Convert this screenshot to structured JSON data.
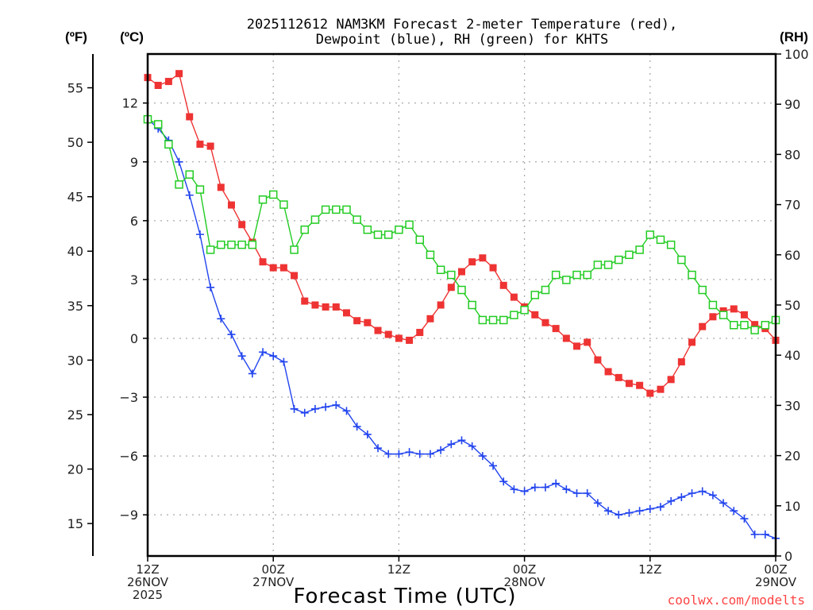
{
  "chart_data": {
    "type": "line",
    "title_lines": [
      "2025112612 NAM3KM Forecast 2-meter Temperature (red),",
      "Dewpoint (blue), RH (green) for KHTS"
    ],
    "xlabel": "Forecast Time (UTC)",
    "credit": "coolwx.com/modelts",
    "x_unit": "hours since 12Z 26NOV 2025",
    "x_range": [
      0,
      60
    ],
    "x_ticks": [
      {
        "hour": 0,
        "lines": [
          "12Z",
          "26NOV",
          "2025"
        ]
      },
      {
        "hour": 12,
        "lines": [
          "00Z",
          "27NOV"
        ]
      },
      {
        "hour": 24,
        "lines": [
          "12Z"
        ]
      },
      {
        "hour": 36,
        "lines": [
          "00Z",
          "28NOV"
        ]
      },
      {
        "hour": 48,
        "lines": [
          "12Z"
        ]
      },
      {
        "hour": 60,
        "lines": [
          "00Z",
          "29NOV"
        ]
      }
    ],
    "axes": {
      "fahrenheit": {
        "label": "(ºF)",
        "ticks": [
          15,
          20,
          25,
          30,
          35,
          40,
          45,
          50,
          55
        ]
      },
      "celsius": {
        "label": "(ºC)",
        "ticks": [
          -9,
          -6,
          -3,
          0,
          3,
          6,
          9,
          12
        ],
        "range": [
          -11.1,
          14.5
        ]
      },
      "rh": {
        "label": "(RH)",
        "ticks": [
          0,
          10,
          20,
          30,
          40,
          50,
          60,
          70,
          80,
          90,
          100
        ],
        "range": [
          0,
          100
        ]
      }
    },
    "grid": true,
    "x": [
      0,
      1,
      2,
      3,
      4,
      5,
      6,
      7,
      8,
      9,
      10,
      11,
      12,
      13,
      14,
      15,
      16,
      17,
      18,
      19,
      20,
      21,
      22,
      23,
      24,
      25,
      26,
      27,
      28,
      29,
      30,
      31,
      32,
      33,
      34,
      35,
      36,
      37,
      38,
      39,
      40,
      41,
      42,
      43,
      44,
      45,
      46,
      47,
      48,
      49,
      50,
      51,
      52,
      53,
      54,
      55,
      56,
      57,
      58,
      59,
      60
    ],
    "series": [
      {
        "name": "Temperature",
        "unit": "°C",
        "axis": "celsius",
        "color": "#ee3333",
        "marker": "filled-square",
        "values": [
          13.3,
          12.9,
          13.1,
          13.5,
          11.3,
          9.9,
          9.8,
          7.7,
          6.8,
          5.8,
          4.9,
          3.9,
          3.6,
          3.6,
          3.2,
          1.9,
          1.7,
          1.6,
          1.6,
          1.3,
          0.9,
          0.8,
          0.4,
          0.2,
          0.0,
          -0.1,
          0.3,
          1.0,
          1.7,
          2.6,
          3.4,
          3.9,
          4.1,
          3.6,
          2.7,
          2.1,
          1.6,
          1.2,
          0.8,
          0.5,
          0.0,
          -0.4,
          -0.2,
          -1.1,
          -1.7,
          -2.0,
          -2.3,
          -2.4,
          -2.8,
          -2.6,
          -2.1,
          -1.2,
          -0.2,
          0.6,
          1.1,
          1.4,
          1.5,
          1.2,
          0.7,
          0.5,
          -0.1
        ]
      },
      {
        "name": "Dewpoint",
        "unit": "°C",
        "axis": "celsius",
        "color": "#2244ee",
        "marker": "plus",
        "values": [
          11.2,
          10.7,
          10.1,
          9.0,
          7.3,
          5.3,
          2.6,
          1.0,
          0.2,
          -0.9,
          -1.8,
          -0.7,
          -0.9,
          -1.2,
          -3.6,
          -3.8,
          -3.6,
          -3.5,
          -3.4,
          -3.7,
          -4.5,
          -4.9,
          -5.6,
          -5.9,
          -5.9,
          -5.8,
          -5.9,
          -5.9,
          -5.7,
          -5.4,
          -5.2,
          -5.5,
          -6.0,
          -6.5,
          -7.3,
          -7.7,
          -7.8,
          -7.6,
          -7.6,
          -7.4,
          -7.7,
          -7.9,
          -7.9,
          -8.4,
          -8.8,
          -9.0,
          -8.9,
          -8.8,
          -8.7,
          -8.6,
          -8.3,
          -8.1,
          -7.9,
          -7.8,
          -8.0,
          -8.4,
          -8.8,
          -9.2,
          -10.0,
          -10.0,
          -10.2
        ]
      },
      {
        "name": "RH",
        "unit": "%",
        "axis": "rh",
        "color": "#22cc22",
        "marker": "open-square",
        "values": [
          87,
          86,
          82,
          74,
          76,
          73,
          61,
          62,
          62,
          62,
          62,
          71,
          72,
          70,
          61,
          65,
          67,
          69,
          69,
          69,
          67,
          65,
          64,
          64,
          65,
          66,
          63,
          60,
          57,
          56,
          53,
          50,
          47,
          47,
          47,
          48,
          49,
          52,
          53,
          56,
          55,
          56,
          56,
          58,
          58,
          59,
          60,
          61,
          64,
          63,
          62,
          59,
          56,
          53,
          50,
          48,
          46,
          46,
          45,
          46,
          47
        ]
      }
    ]
  }
}
